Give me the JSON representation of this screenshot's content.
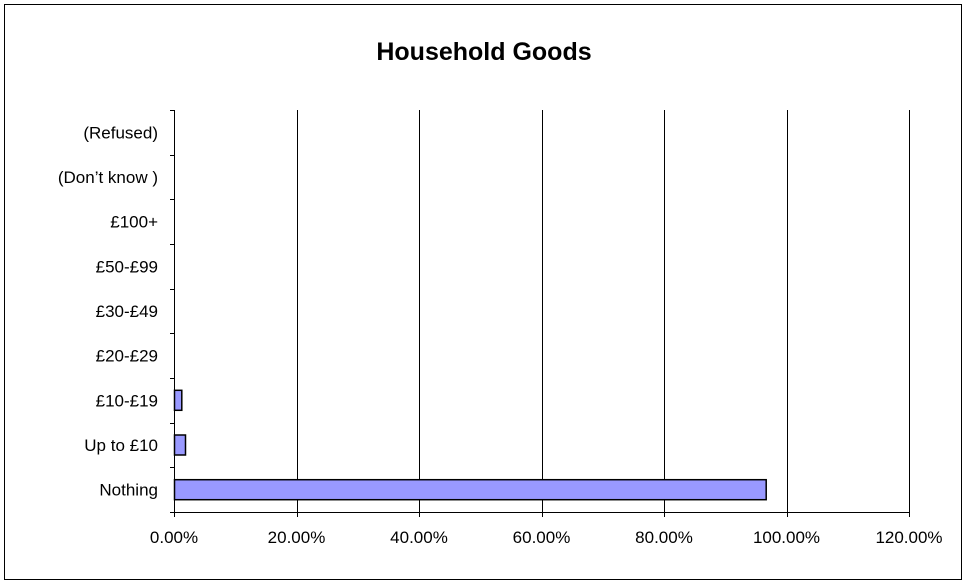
{
  "chart_data": {
    "type": "bar",
    "orientation": "horizontal",
    "title": "Household Goods",
    "xlabel": "",
    "ylabel": "",
    "categories": [
      "Nothing",
      "Up to £10",
      "£10-£19",
      "£20-£29",
      "£30-£49",
      "£50-£99",
      "£100+",
      "(Don’t know )",
      "(Refused)"
    ],
    "values": [
      0.966,
      0.018,
      0.012,
      0,
      0,
      0,
      0,
      0,
      0
    ],
    "xlim": [
      0,
      1.2
    ],
    "xticks": [
      0,
      0.2,
      0.4,
      0.6,
      0.8,
      1.0,
      1.2
    ],
    "xtick_labels": [
      "0.00%",
      "20.00%",
      "40.00%",
      "60.00%",
      "80.00%",
      "100.00%",
      "120.00%"
    ],
    "grid": "vertical",
    "legend": "none",
    "bar_color": "#9999ff",
    "bar_edge_color": "#000000"
  }
}
